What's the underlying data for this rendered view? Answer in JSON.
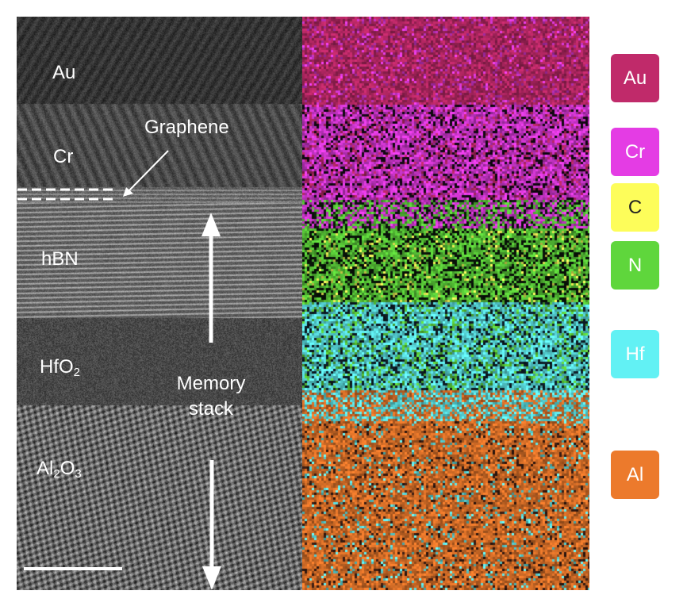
{
  "tem_panel": {
    "layer_labels": {
      "au": "Au",
      "cr": "Cr",
      "hbn": "hBN",
      "hfo2_base": "HfO",
      "hfo2_sub": "2",
      "al2o3_a": "Al",
      "al2o3_sub1": "2",
      "al2o3_b": "O",
      "al2o3_sub2": "3"
    },
    "graphene_label": "Graphene",
    "memory_stack_line1": "Memory",
    "memory_stack_line2": "stack"
  },
  "legend": [
    {
      "element": "Au",
      "color": "#c02a6a",
      "text_color": "#ffffff"
    },
    {
      "element": "Cr",
      "color": "#e43ce4",
      "text_color": "#ffffff"
    },
    {
      "element": "C",
      "color": "#fdfd5a",
      "text_color": "#222222"
    },
    {
      "element": "N",
      "color": "#5fd63c",
      "text_color": "#ffffff"
    },
    {
      "element": "Hf",
      "color": "#62f1f4",
      "text_color": "#ffffff"
    },
    {
      "element": "Al",
      "color": "#ec7a2c",
      "text_color": "#ffffff"
    }
  ]
}
